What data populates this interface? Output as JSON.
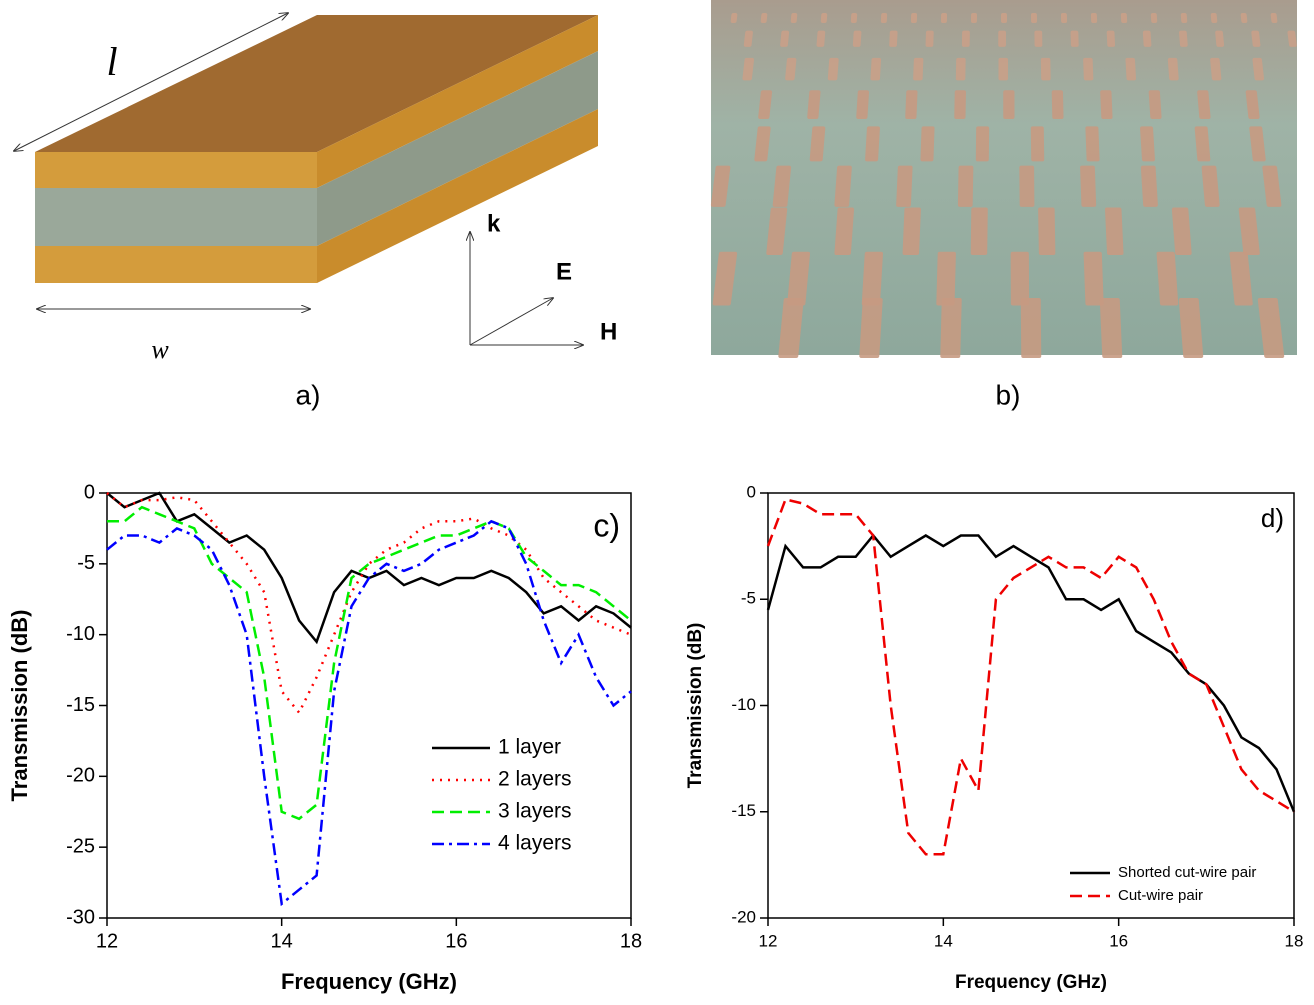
{
  "figure": {
    "panel_a": {
      "length_label": "l",
      "width_label": "w",
      "axes": [
        "k",
        "E",
        "H"
      ],
      "panel_label": "a)"
    },
    "panel_b": {
      "panel_label": "b)"
    }
  },
  "chart_data": [
    {
      "type": "line",
      "panel_label": "c)",
      "x_label": "Frequency (GHz)",
      "y_label": "Transmission (dB)",
      "x": [
        12,
        12.2,
        12.4,
        12.6,
        12.8,
        13,
        13.2,
        13.4,
        13.6,
        13.8,
        14,
        14.2,
        14.4,
        14.6,
        14.8,
        15,
        15.2,
        15.4,
        15.6,
        15.8,
        16,
        16.2,
        16.4,
        16.6,
        16.8,
        17,
        17.2,
        17.4,
        17.6,
        17.8,
        18
      ],
      "xlim": [
        12,
        18
      ],
      "xticks": [
        12,
        14,
        16,
        18
      ],
      "ylim": [
        -30,
        0
      ],
      "yticks": [
        0,
        -5,
        -10,
        -15,
        -20,
        -25,
        -30
      ],
      "legend": "lower right",
      "series": [
        {
          "name": "1 layer",
          "color": "#000000",
          "linestyle": "solid",
          "values": [
            0,
            -1,
            -0.5,
            0,
            -2,
            -1.5,
            -2.5,
            -3.5,
            -3,
            -4,
            -6,
            -9,
            -10.5,
            -7,
            -5.5,
            -6,
            -5.5,
            -6.5,
            -6,
            -6.5,
            -6,
            -6,
            -5.5,
            -6,
            -7,
            -8.5,
            -8,
            -9,
            -8,
            -8.5,
            -9.5
          ]
        },
        {
          "name": "2 layers",
          "color": "#ff0000",
          "linestyle": "dotted",
          "values": [
            0,
            -1,
            -0.5,
            -0.5,
            -0.3,
            -0.5,
            -2,
            -3.5,
            -5,
            -7,
            -14,
            -15.5,
            -13,
            -10,
            -7,
            -5,
            -4,
            -3.5,
            -2.5,
            -2,
            -2,
            -1.8,
            -2.5,
            -3,
            -4,
            -6,
            -7,
            -8,
            -9,
            -9.5,
            -10
          ]
        },
        {
          "name": "3 layers",
          "color": "#00ee00",
          "linestyle": "dashed",
          "values": [
            -2,
            -2,
            -1,
            -1.5,
            -2,
            -2.5,
            -5,
            -6,
            -7,
            -13,
            -22.5,
            -23,
            -22,
            -12,
            -6,
            -5,
            -4.5,
            -4,
            -3.5,
            -3,
            -3,
            -2.5,
            -2,
            -2.5,
            -4.5,
            -5.5,
            -6.5,
            -6.5,
            -7,
            -8,
            -9
          ]
        },
        {
          "name": "4 layers",
          "color": "#0000ff",
          "linestyle": "dashdot",
          "values": [
            -4,
            -3,
            -3,
            -3.5,
            -2.5,
            -3,
            -4,
            -6.5,
            -10,
            -20,
            -29,
            -28,
            -27,
            -14,
            -8,
            -6,
            -5,
            -5.5,
            -5,
            -4,
            -3.5,
            -3,
            -2,
            -2.5,
            -5,
            -9,
            -12,
            -10,
            -13,
            -15,
            -14
          ]
        }
      ]
    },
    {
      "type": "line",
      "panel_label": "d)",
      "x_label": "Frequency (GHz)",
      "y_label": "Transmission (dB)",
      "x": [
        12,
        12.2,
        12.4,
        12.6,
        12.8,
        13,
        13.2,
        13.4,
        13.6,
        13.8,
        14,
        14.2,
        14.4,
        14.6,
        14.8,
        15,
        15.2,
        15.4,
        15.6,
        15.8,
        16,
        16.2,
        16.4,
        16.6,
        16.8,
        17,
        17.2,
        17.4,
        17.6,
        17.8,
        18
      ],
      "xlim": [
        12,
        18
      ],
      "xticks": [
        12,
        14,
        16,
        18
      ],
      "ylim": [
        -20,
        0
      ],
      "yticks": [
        0,
        -5,
        -10,
        -15,
        -20
      ],
      "legend": "lower right",
      "series": [
        {
          "name": "Shorted cut-wire pair",
          "color": "#000000",
          "linestyle": "solid",
          "values": [
            -5.5,
            -2.5,
            -3.5,
            -3.5,
            -3,
            -3,
            -2,
            -3,
            -2.5,
            -2,
            -2.5,
            -2,
            -2,
            -3,
            -2.5,
            -3,
            -3.5,
            -5,
            -5,
            -5.5,
            -5,
            -6.5,
            -7,
            -7.5,
            -8.5,
            -9,
            -10,
            -11.5,
            -12,
            -13,
            -15
          ]
        },
        {
          "name": "Cut-wire pair",
          "color": "#ee0000",
          "linestyle": "dashed",
          "values": [
            -2.5,
            -0.3,
            -0.5,
            -1,
            -1,
            -1,
            -2,
            -10,
            -16,
            -17,
            -17,
            -12.5,
            -14,
            -5,
            -4,
            -3.5,
            -3,
            -3.5,
            -3.5,
            -4,
            -3,
            -3.5,
            -5,
            -7,
            -8.5,
            -9,
            -11,
            -13,
            -14,
            -14.5,
            -15
          ]
        }
      ]
    }
  ]
}
